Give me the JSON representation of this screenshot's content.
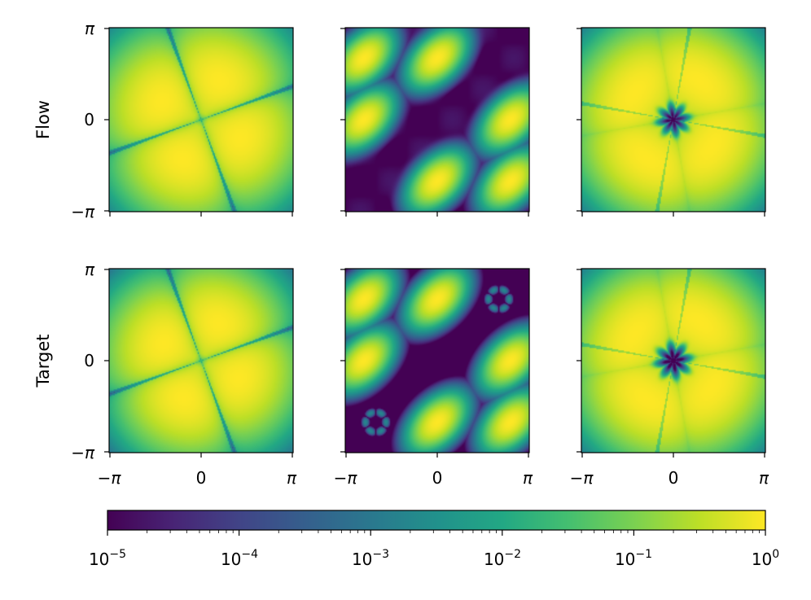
{
  "figure": {
    "row_labels": [
      "Flow",
      "Target"
    ],
    "x_ticks": [
      "−π",
      "0",
      "π"
    ],
    "y_ticks": [
      "π",
      "0",
      "−π"
    ],
    "colorbar": {
      "scale": "log",
      "min": 1e-05,
      "max": 1,
      "tick_labels": [
        {
          "base": "10",
          "exp": "−5"
        },
        {
          "base": "10",
          "exp": "−4"
        },
        {
          "base": "10",
          "exp": "−3"
        },
        {
          "base": "10",
          "exp": "−2"
        },
        {
          "base": "10",
          "exp": "−1"
        },
        {
          "base": "10",
          "exp": "0"
        }
      ],
      "colormap": "viridis"
    }
  },
  "chart_data": {
    "type": "heatmap",
    "layout": "2 rows x 3 columns of density maps with shared log-scale colorbar",
    "x_range": [
      -3.14159,
      3.14159
    ],
    "y_range": [
      -3.14159,
      3.14159
    ],
    "colors": {
      "viridis": [
        "#440154",
        "#482475",
        "#414487",
        "#355f8d",
        "#2a788e",
        "#21918c",
        "#22a884",
        "#44bf70",
        "#7ad151",
        "#bddf26",
        "#fde725"
      ]
    },
    "panels": [
      {
        "row": "Flow",
        "col": 1,
        "pattern": "four-lobe",
        "lobe_angle_deg": 45,
        "rotation_deg": 20,
        "spread": 1.05,
        "clean": false
      },
      {
        "row": "Flow",
        "col": 2,
        "pattern": "blobs",
        "centers": [
          [
            -2.5,
            2.1
          ],
          [
            0.0,
            2.1
          ],
          [
            -2.5,
            0.0
          ],
          [
            2.5,
            0.0
          ],
          [
            0.0,
            -2.1
          ],
          [
            2.5,
            -2.1
          ]
        ],
        "clean": false
      },
      {
        "row": "Flow",
        "col": 3,
        "pattern": "star",
        "hole_radius": 0.55,
        "arms": 8,
        "rotation_deg": 10,
        "clean": false
      },
      {
        "row": "Target",
        "col": 1,
        "pattern": "four-lobe",
        "lobe_angle_deg": 45,
        "rotation_deg": 20,
        "spread": 1.0,
        "clean": true
      },
      {
        "row": "Target",
        "col": 2,
        "pattern": "blobs",
        "centers": [
          [
            -2.5,
            2.1
          ],
          [
            0.0,
            2.1
          ],
          [
            -2.5,
            0.0
          ],
          [
            2.5,
            0.0
          ],
          [
            0.0,
            -2.1
          ],
          [
            2.5,
            -2.1
          ]
        ],
        "rings": [
          [
            2.1,
            2.1
          ],
          [
            -2.1,
            -2.1
          ]
        ],
        "clean": true
      },
      {
        "row": "Target",
        "col": 3,
        "pattern": "star",
        "hole_radius": 0.6,
        "arms": 8,
        "rotation_deg": 10,
        "clean": true
      }
    ]
  }
}
